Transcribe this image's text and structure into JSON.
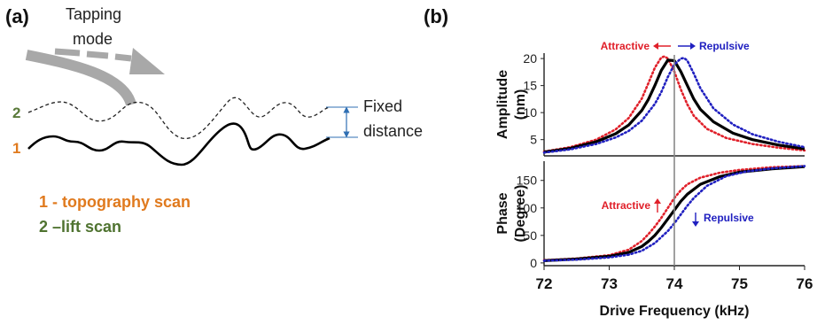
{
  "panel_a": {
    "label": "(a)",
    "tapping_line1": "Tapping",
    "tapping_line2": "mode",
    "line2_number": "2",
    "line1_number": "1",
    "fixed_line1": "Fixed",
    "fixed_line2": "distance",
    "legend_1": "1 - topography scan",
    "legend_2": "2 –lift scan"
  },
  "panel_b": {
    "label": "(b)",
    "attractive": "Attractive",
    "repulsive": "Repulsive"
  },
  "colors": {
    "attractive": "#e0202a",
    "repulsive": "#2020c0",
    "measured": "#000000",
    "orange": "#e07a1e",
    "green": "#4f7330"
  },
  "chart_data": [
    {
      "type": "line",
      "title": "",
      "xlabel": "Drive Frequency (kHz)",
      "ylabel": "Amplitude (nm)",
      "xlim": [
        72,
        76
      ],
      "ylim": [
        2,
        21
      ],
      "yticks": [
        5,
        10,
        15,
        20
      ],
      "series": [
        {
          "name": "Attractive",
          "style": "dotted",
          "color": "#e0202a",
          "x": [
            72.0,
            72.4,
            72.8,
            73.1,
            73.3,
            73.5,
            73.6,
            73.7,
            73.8,
            73.85,
            73.9,
            74.0,
            74.1,
            74.2,
            74.3,
            74.5,
            74.8,
            75.2,
            75.6,
            76.0
          ],
          "y": [
            2.8,
            3.6,
            5.0,
            6.9,
            9.0,
            12.6,
            15.4,
            18.3,
            20.2,
            20.4,
            20.0,
            17.6,
            14.3,
            11.5,
            9.4,
            7.0,
            5.3,
            4.2,
            3.5,
            3.0
          ]
        },
        {
          "name": "",
          "style": "solid",
          "color": "#000000",
          "x": [
            72.0,
            72.4,
            72.8,
            73.1,
            73.3,
            73.5,
            73.6,
            73.7,
            73.8,
            73.9,
            74.0,
            74.1,
            74.2,
            74.3,
            74.4,
            74.6,
            74.9,
            75.2,
            75.6,
            76.0
          ],
          "y": [
            2.7,
            3.4,
            4.6,
            6.1,
            7.7,
            10.4,
            12.4,
            15.0,
            17.8,
            19.7,
            19.6,
            17.6,
            15.0,
            12.5,
            10.6,
            8.3,
            6.2,
            5.0,
            4.0,
            3.3
          ]
        },
        {
          "name": "Repulsive",
          "style": "dotted",
          "color": "#2020c0",
          "x": [
            72.0,
            72.4,
            72.8,
            73.1,
            73.3,
            73.5,
            73.7,
            73.8,
            73.9,
            74.0,
            74.1,
            74.15,
            74.2,
            74.3,
            74.4,
            74.6,
            74.9,
            75.2,
            75.6,
            76.0
          ],
          "y": [
            2.6,
            3.2,
            4.2,
            5.4,
            6.6,
            8.5,
            11.6,
            13.8,
            16.6,
            18.9,
            20.0,
            20.1,
            19.6,
            17.2,
            14.5,
            10.8,
            7.8,
            6.0,
            4.6,
            3.6
          ]
        }
      ]
    },
    {
      "type": "line",
      "title": "",
      "xlabel": "Drive Frequency (kHz)",
      "ylabel": "Phase (Degree)",
      "xlim": [
        72,
        76
      ],
      "ylim": [
        -5,
        185
      ],
      "xticks": [
        72,
        73,
        74,
        75,
        76
      ],
      "yticks": [
        0,
        50,
        100,
        150
      ],
      "series": [
        {
          "name": "Attractive",
          "style": "dotted",
          "color": "#e0202a",
          "x": [
            72.0,
            72.5,
            73.0,
            73.3,
            73.5,
            73.6,
            73.7,
            73.8,
            73.9,
            74.0,
            74.1,
            74.2,
            74.4,
            74.7,
            75.0,
            75.5,
            76.0
          ],
          "y": [
            5,
            8,
            14,
            24,
            40,
            52,
            66,
            82,
            100,
            118,
            132,
            143,
            155,
            164,
            169,
            174,
            176
          ]
        },
        {
          "name": "",
          "style": "solid",
          "color": "#000000",
          "x": [
            72.0,
            72.5,
            73.0,
            73.3,
            73.5,
            73.6,
            73.7,
            73.8,
            73.9,
            74.0,
            74.1,
            74.2,
            74.4,
            74.7,
            75.0,
            75.5,
            76.0
          ],
          "y": [
            4,
            7,
            12,
            19,
            30,
            39,
            50,
            64,
            80,
            96,
            112,
            125,
            143,
            157,
            165,
            171,
            175
          ]
        },
        {
          "name": "Repulsive",
          "style": "dotted",
          "color": "#2020c0",
          "x": [
            72.0,
            72.5,
            73.0,
            73.3,
            73.5,
            73.7,
            73.9,
            74.0,
            74.1,
            74.2,
            74.3,
            74.5,
            74.8,
            75.1,
            75.5,
            76.0
          ],
          "y": [
            4,
            6,
            10,
            15,
            22,
            36,
            58,
            72,
            88,
            104,
            118,
            140,
            158,
            166,
            172,
            176
          ]
        }
      ]
    }
  ]
}
